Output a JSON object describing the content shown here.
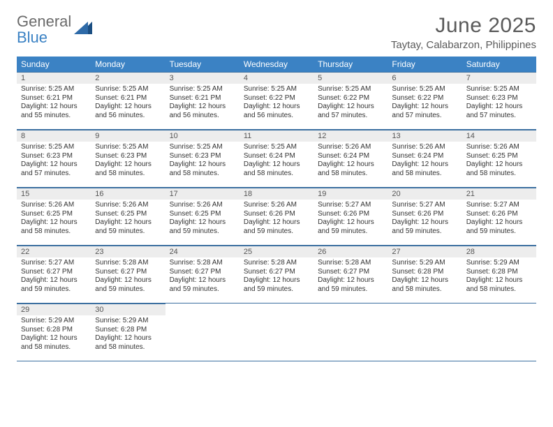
{
  "logo": {
    "general": "General",
    "blue": "Blue"
  },
  "title": "June 2025",
  "location": "Taytay, Calabarzon, Philippines",
  "colors": {
    "header_bg": "#3b82c4",
    "header_fg": "#ffffff",
    "daynum_bg": "#ededed",
    "rule": "#3b6fa0",
    "text": "#333333",
    "title_fg": "#5a5a5a"
  },
  "daysOfWeek": [
    "Sunday",
    "Monday",
    "Tuesday",
    "Wednesday",
    "Thursday",
    "Friday",
    "Saturday"
  ],
  "weeks": [
    [
      {
        "n": 1,
        "sr": "5:25 AM",
        "ss": "6:21 PM",
        "dl": "12 hours and 55 minutes."
      },
      {
        "n": 2,
        "sr": "5:25 AM",
        "ss": "6:21 PM",
        "dl": "12 hours and 56 minutes."
      },
      {
        "n": 3,
        "sr": "5:25 AM",
        "ss": "6:21 PM",
        "dl": "12 hours and 56 minutes."
      },
      {
        "n": 4,
        "sr": "5:25 AM",
        "ss": "6:22 PM",
        "dl": "12 hours and 56 minutes."
      },
      {
        "n": 5,
        "sr": "5:25 AM",
        "ss": "6:22 PM",
        "dl": "12 hours and 57 minutes."
      },
      {
        "n": 6,
        "sr": "5:25 AM",
        "ss": "6:22 PM",
        "dl": "12 hours and 57 minutes."
      },
      {
        "n": 7,
        "sr": "5:25 AM",
        "ss": "6:23 PM",
        "dl": "12 hours and 57 minutes."
      }
    ],
    [
      {
        "n": 8,
        "sr": "5:25 AM",
        "ss": "6:23 PM",
        "dl": "12 hours and 57 minutes."
      },
      {
        "n": 9,
        "sr": "5:25 AM",
        "ss": "6:23 PM",
        "dl": "12 hours and 58 minutes."
      },
      {
        "n": 10,
        "sr": "5:25 AM",
        "ss": "6:23 PM",
        "dl": "12 hours and 58 minutes."
      },
      {
        "n": 11,
        "sr": "5:25 AM",
        "ss": "6:24 PM",
        "dl": "12 hours and 58 minutes."
      },
      {
        "n": 12,
        "sr": "5:26 AM",
        "ss": "6:24 PM",
        "dl": "12 hours and 58 minutes."
      },
      {
        "n": 13,
        "sr": "5:26 AM",
        "ss": "6:24 PM",
        "dl": "12 hours and 58 minutes."
      },
      {
        "n": 14,
        "sr": "5:26 AM",
        "ss": "6:25 PM",
        "dl": "12 hours and 58 minutes."
      }
    ],
    [
      {
        "n": 15,
        "sr": "5:26 AM",
        "ss": "6:25 PM",
        "dl": "12 hours and 58 minutes."
      },
      {
        "n": 16,
        "sr": "5:26 AM",
        "ss": "6:25 PM",
        "dl": "12 hours and 59 minutes."
      },
      {
        "n": 17,
        "sr": "5:26 AM",
        "ss": "6:25 PM",
        "dl": "12 hours and 59 minutes."
      },
      {
        "n": 18,
        "sr": "5:26 AM",
        "ss": "6:26 PM",
        "dl": "12 hours and 59 minutes."
      },
      {
        "n": 19,
        "sr": "5:27 AM",
        "ss": "6:26 PM",
        "dl": "12 hours and 59 minutes."
      },
      {
        "n": 20,
        "sr": "5:27 AM",
        "ss": "6:26 PM",
        "dl": "12 hours and 59 minutes."
      },
      {
        "n": 21,
        "sr": "5:27 AM",
        "ss": "6:26 PM",
        "dl": "12 hours and 59 minutes."
      }
    ],
    [
      {
        "n": 22,
        "sr": "5:27 AM",
        "ss": "6:27 PM",
        "dl": "12 hours and 59 minutes."
      },
      {
        "n": 23,
        "sr": "5:28 AM",
        "ss": "6:27 PM",
        "dl": "12 hours and 59 minutes."
      },
      {
        "n": 24,
        "sr": "5:28 AM",
        "ss": "6:27 PM",
        "dl": "12 hours and 59 minutes."
      },
      {
        "n": 25,
        "sr": "5:28 AM",
        "ss": "6:27 PM",
        "dl": "12 hours and 59 minutes."
      },
      {
        "n": 26,
        "sr": "5:28 AM",
        "ss": "6:27 PM",
        "dl": "12 hours and 59 minutes."
      },
      {
        "n": 27,
        "sr": "5:29 AM",
        "ss": "6:28 PM",
        "dl": "12 hours and 58 minutes."
      },
      {
        "n": 28,
        "sr": "5:29 AM",
        "ss": "6:28 PM",
        "dl": "12 hours and 58 minutes."
      }
    ],
    [
      {
        "n": 29,
        "sr": "5:29 AM",
        "ss": "6:28 PM",
        "dl": "12 hours and 58 minutes."
      },
      {
        "n": 30,
        "sr": "5:29 AM",
        "ss": "6:28 PM",
        "dl": "12 hours and 58 minutes."
      },
      null,
      null,
      null,
      null,
      null
    ]
  ],
  "labels": {
    "sunrise": "Sunrise: ",
    "sunset": "Sunset: ",
    "daylight": "Daylight: "
  }
}
